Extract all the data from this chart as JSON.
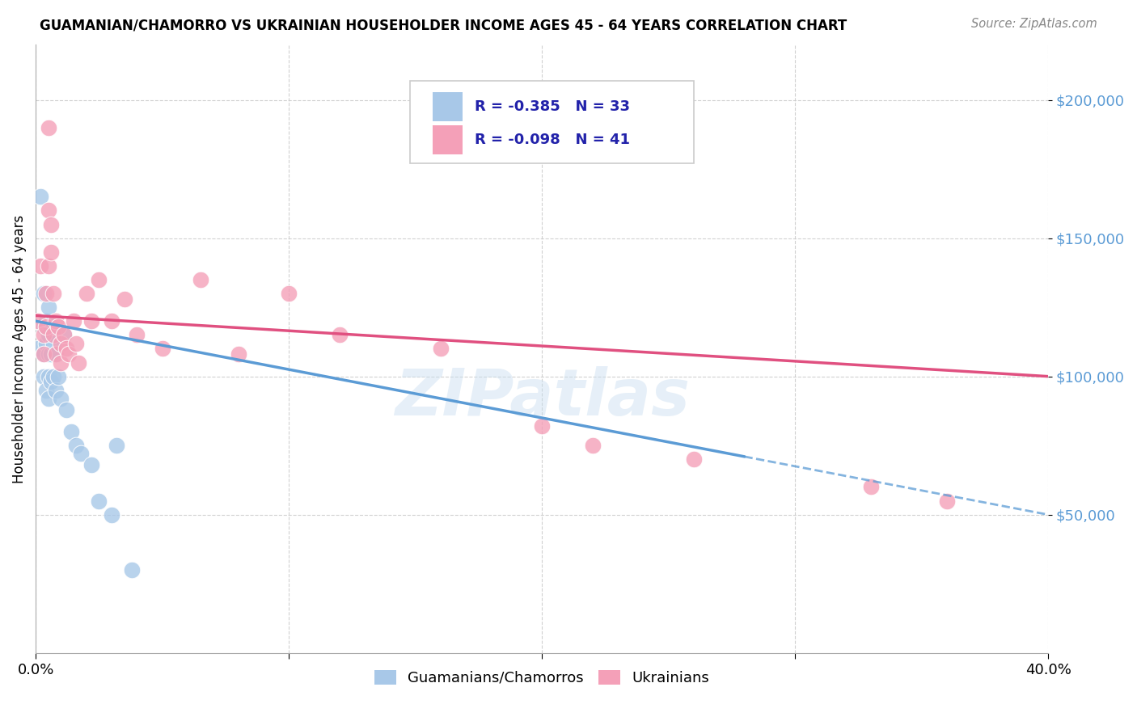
{
  "title": "GUAMANIAN/CHAMORRO VS UKRAINIAN HOUSEHOLDER INCOME AGES 45 - 64 YEARS CORRELATION CHART",
  "source": "Source: ZipAtlas.com",
  "ylabel": "Householder Income Ages 45 - 64 years",
  "xlim": [
    0.0,
    0.4
  ],
  "ylim": [
    0,
    220000
  ],
  "color_blue": "#a8c8e8",
  "color_pink": "#f4a0b8",
  "color_blue_line": "#5b9bd5",
  "color_pink_line": "#e05080",
  "background_color": "#ffffff",
  "watermark": "ZIPatlas",
  "legend_r1": "-0.385",
  "legend_n1": "33",
  "legend_r2": "-0.098",
  "legend_n2": "41",
  "guamanian_x": [
    0.001,
    0.002,
    0.003,
    0.003,
    0.003,
    0.003,
    0.004,
    0.004,
    0.004,
    0.005,
    0.005,
    0.005,
    0.005,
    0.005,
    0.006,
    0.006,
    0.006,
    0.007,
    0.007,
    0.008,
    0.008,
    0.009,
    0.01,
    0.011,
    0.012,
    0.014,
    0.016,
    0.018,
    0.022,
    0.025,
    0.03,
    0.032,
    0.038
  ],
  "guamanian_y": [
    110000,
    165000,
    130000,
    118000,
    108000,
    100000,
    120000,
    112000,
    95000,
    125000,
    115000,
    108000,
    100000,
    92000,
    118000,
    108000,
    98000,
    112000,
    100000,
    108000,
    95000,
    100000,
    92000,
    115000,
    88000,
    80000,
    75000,
    72000,
    68000,
    55000,
    50000,
    75000,
    30000
  ],
  "ukrainian_x": [
    0.001,
    0.002,
    0.003,
    0.003,
    0.004,
    0.004,
    0.005,
    0.005,
    0.005,
    0.006,
    0.006,
    0.007,
    0.007,
    0.008,
    0.008,
    0.009,
    0.01,
    0.01,
    0.011,
    0.012,
    0.013,
    0.015,
    0.016,
    0.017,
    0.02,
    0.022,
    0.025,
    0.03,
    0.035,
    0.04,
    0.05,
    0.065,
    0.08,
    0.1,
    0.12,
    0.16,
    0.2,
    0.22,
    0.26,
    0.33,
    0.36
  ],
  "ukrainian_y": [
    120000,
    140000,
    115000,
    108000,
    130000,
    118000,
    190000,
    160000,
    140000,
    155000,
    145000,
    130000,
    115000,
    120000,
    108000,
    118000,
    112000,
    105000,
    115000,
    110000,
    108000,
    120000,
    112000,
    105000,
    130000,
    120000,
    135000,
    120000,
    128000,
    115000,
    110000,
    135000,
    108000,
    130000,
    115000,
    110000,
    82000,
    75000,
    70000,
    60000,
    55000
  ]
}
